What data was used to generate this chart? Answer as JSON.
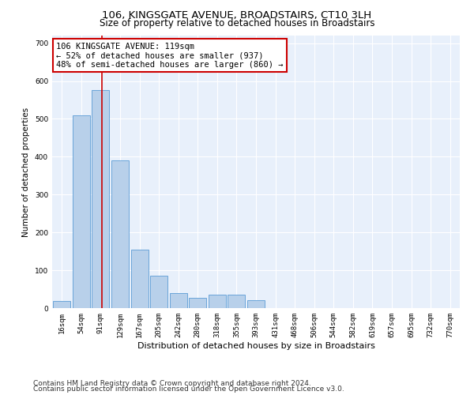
{
  "title": "106, KINGSGATE AVENUE, BROADSTAIRS, CT10 3LH",
  "subtitle": "Size of property relative to detached houses in Broadstairs",
  "xlabel": "Distribution of detached houses by size in Broadstairs",
  "ylabel": "Number of detached properties",
  "bin_labels": [
    "16sqm",
    "54sqm",
    "91sqm",
    "129sqm",
    "167sqm",
    "205sqm",
    "242sqm",
    "280sqm",
    "318sqm",
    "355sqm",
    "393sqm",
    "431sqm",
    "468sqm",
    "506sqm",
    "544sqm",
    "582sqm",
    "619sqm",
    "657sqm",
    "695sqm",
    "732sqm",
    "770sqm"
  ],
  "bar_heights": [
    18,
    510,
    575,
    390,
    155,
    85,
    40,
    28,
    35,
    35,
    20,
    0,
    0,
    0,
    0,
    0,
    0,
    0,
    0,
    0,
    0
  ],
  "bar_color": "#b8d0ea",
  "bar_edge_color": "#5b9bd5",
  "property_line_bin_index": 2.08,
  "annotation_text": "106 KINGSGATE AVENUE: 119sqm\n← 52% of detached houses are smaller (937)\n48% of semi-detached houses are larger (860) →",
  "annotation_box_color": "#ffffff",
  "annotation_box_edge": "#cc0000",
  "vertical_line_color": "#cc0000",
  "ylim": [
    0,
    720
  ],
  "yticks": [
    0,
    100,
    200,
    300,
    400,
    500,
    600,
    700
  ],
  "footnote1": "Contains HM Land Registry data © Crown copyright and database right 2024.",
  "footnote2": "Contains public sector information licensed under the Open Government Licence v3.0.",
  "bg_color": "#e8f0fb",
  "fig_bg_color": "#ffffff",
  "title_fontsize": 9.5,
  "subtitle_fontsize": 8.5,
  "ylabel_fontsize": 7.5,
  "xlabel_fontsize": 8,
  "tick_fontsize": 6.5,
  "annotation_fontsize": 7.5,
  "footnote_fontsize": 6.5
}
